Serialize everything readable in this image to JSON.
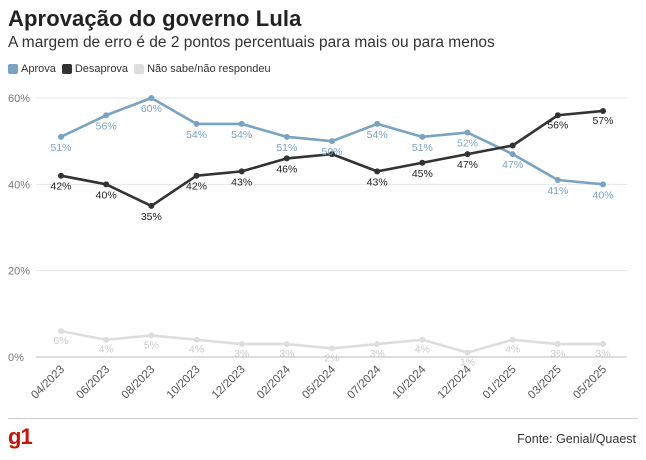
{
  "title": "Aprovação do governo Lula",
  "subtitle": "A margem de erro é de 2 pontos percentuais para mais ou para menos",
  "source": "Fonte: Genial/Quaest",
  "logo": "g1",
  "chart_data": {
    "type": "line",
    "categories": [
      "04/2023",
      "06/2023",
      "08/2023",
      "10/2023",
      "12/2023",
      "02/2024",
      "05/2024",
      "07/2024",
      "10/2024",
      "12/2024",
      "01/2025",
      "03/2025",
      "05/2025"
    ],
    "ylim": [
      0,
      60
    ],
    "yticks": [
      "0%",
      "20%",
      "40%",
      "60%"
    ],
    "legend_position": "top-left",
    "grid": true,
    "series": [
      {
        "name": "Aprova",
        "color": "#7aa3c2",
        "values": [
          51,
          56,
          60,
          54,
          54,
          51,
          50,
          54,
          51,
          52,
          47,
          41,
          40
        ],
        "labels": [
          "51%",
          "56%",
          "60%",
          "54%",
          "54%",
          "51%",
          "50%",
          "54%",
          "51%",
          "52%",
          "47%",
          "41%",
          "40%"
        ]
      },
      {
        "name": "Desaprova",
        "color": "#333333",
        "values": [
          42,
          40,
          35,
          42,
          43,
          46,
          47,
          43,
          45,
          47,
          49,
          56,
          57
        ],
        "labels": [
          "42%",
          "40%",
          "35%",
          "42%",
          "43%",
          "46%",
          "",
          "43%",
          "45%",
          "47%",
          "",
          "56%",
          "57%"
        ]
      },
      {
        "name": "Não sabe/não respondeu",
        "color": "#dddddd",
        "values": [
          6,
          4,
          5,
          4,
          3,
          3,
          2,
          3,
          4,
          1,
          4,
          3,
          3
        ],
        "labels": [
          "6%",
          "4%",
          "5%",
          "4%",
          "3%",
          "3%",
          "2%",
          "3%",
          "4%",
          "1%",
          "4%",
          "3%",
          "3%"
        ]
      }
    ]
  }
}
